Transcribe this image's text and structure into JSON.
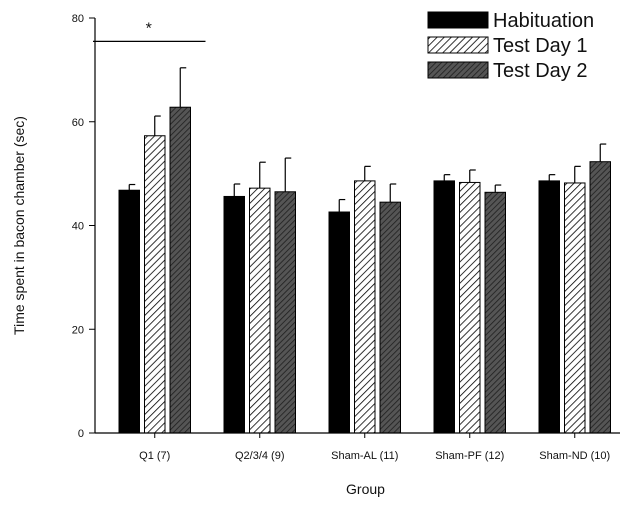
{
  "chart_data": {
    "type": "bar",
    "title": "",
    "xlabel": "Group",
    "ylabel": "Time spent in bacon chamber (sec)",
    "ylim": [
      0,
      80
    ],
    "yticks": [
      0,
      20,
      40,
      60,
      80
    ],
    "grid": false,
    "legend_position": "top-right",
    "categories": [
      "Q1 (7)",
      "Q2/3/4 (9)",
      "Sham-AL (11)",
      "Sham-PF (12)",
      "Sham-ND (10)"
    ],
    "series": [
      {
        "name": "Habituation",
        "pattern": "solid",
        "color": "#000000",
        "values": [
          46.8,
          45.6,
          42.6,
          48.6,
          48.6
        ],
        "errors": [
          1.1,
          2.4,
          2.4,
          1.2,
          1.2
        ]
      },
      {
        "name": "Test Day 1",
        "pattern": "light-hatch",
        "color": "#000000",
        "values": [
          57.3,
          47.2,
          48.6,
          48.3,
          48.2
        ],
        "errors": [
          3.8,
          5.0,
          2.8,
          2.4,
          3.2
        ]
      },
      {
        "name": "Test Day 2",
        "pattern": "dark-hatch",
        "color": "#4a4a4a",
        "values": [
          62.8,
          46.5,
          44.5,
          46.4,
          52.3
        ],
        "errors": [
          7.6,
          6.5,
          3.5,
          1.4,
          3.4
        ]
      }
    ],
    "annotations": [
      {
        "text": "*",
        "category": "Q1 (7)",
        "type": "significance-bracket",
        "y": 75.5
      }
    ]
  }
}
